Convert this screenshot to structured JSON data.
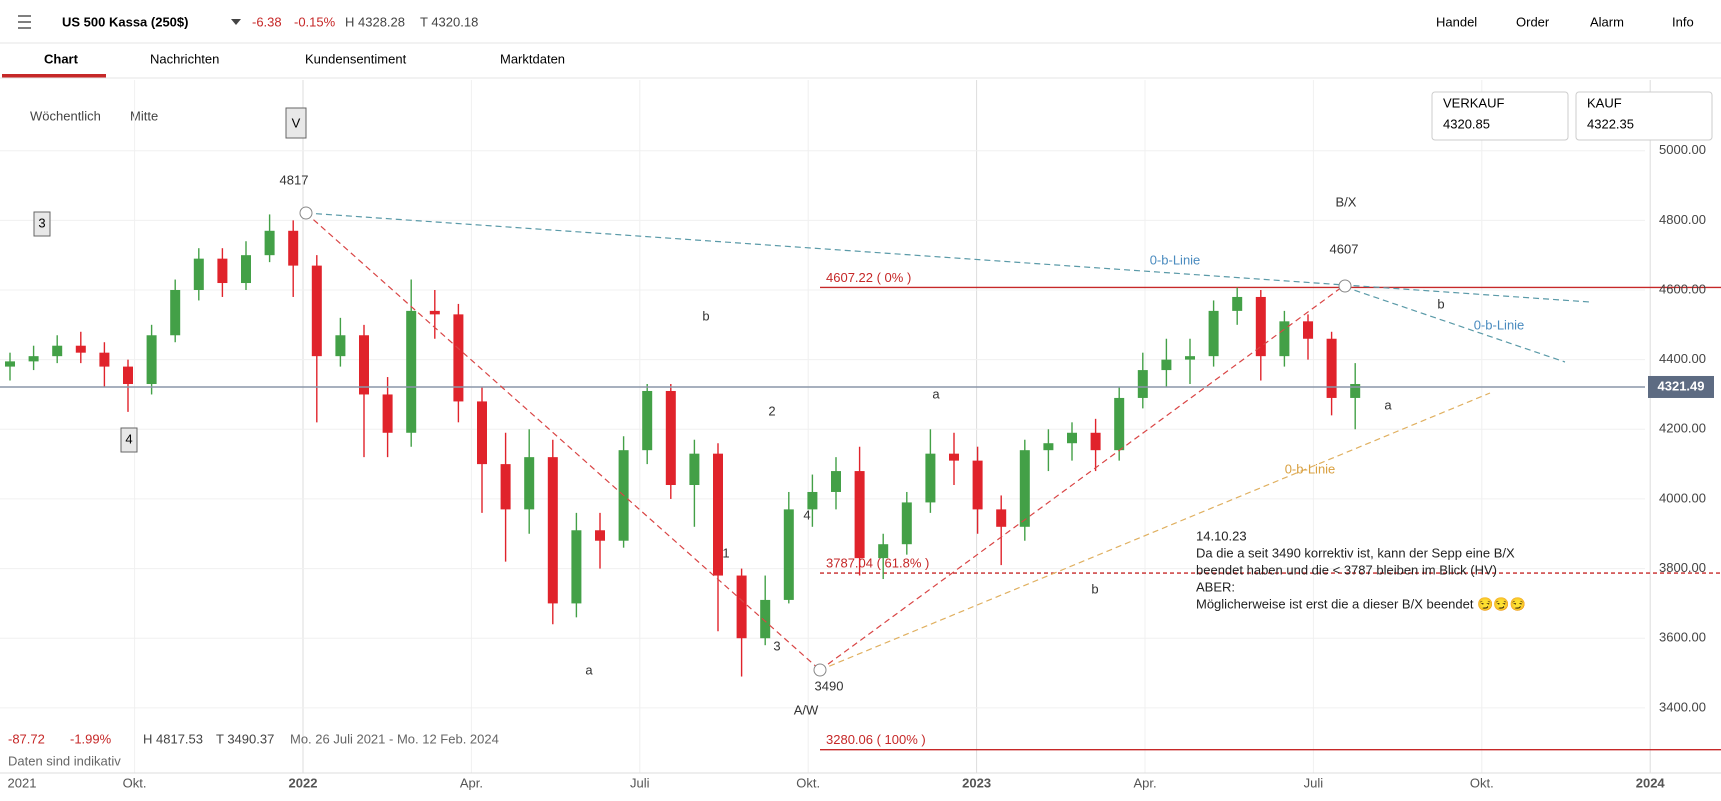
{
  "header": {
    "instrument": "US 500 Kassa (250$)",
    "change": "-6.38",
    "change_pct": "-0.15%",
    "high": "H 4328.28",
    "low": "T 4320.18",
    "nav": [
      "Handel",
      "Order",
      "Alarm",
      "Info"
    ]
  },
  "tabs": [
    "Chart",
    "Nachrichten",
    "Kundensentiment",
    "Marktdaten"
  ],
  "controls": {
    "interval": "Wöchentlich",
    "price_type": "Mitte"
  },
  "quote": {
    "sell_label": "VERKAUF",
    "sell": "4320.85",
    "buy_label": "KAUF",
    "buy": "4322.35"
  },
  "footer": {
    "change": "-87.72",
    "change_pct": "-1.99%",
    "high": "H 4817.53",
    "low": "T 3490.37",
    "range": "Mo. 26 Juli 2021 - Mo. 12 Feb. 2024",
    "note": "Daten sind indikativ"
  },
  "x_labels": [
    "2021",
    "Okt.",
    "2022",
    "Apr.",
    "Juli",
    "Okt.",
    "2023",
    "Apr.",
    "Juli",
    "Okt.",
    "2024"
  ],
  "annotations": [
    "V",
    "3",
    "4",
    "4817",
    "b",
    "2",
    "a",
    "1",
    "4",
    "3",
    "3490",
    "A/W",
    "a",
    "B/X",
    "4607",
    "0-b-Linie",
    "0-b-Linie",
    "b",
    "a",
    "0-b-Linie",
    "b"
  ],
  "note": [
    "14.10.23",
    "Da die a seit 3490 korrektiv ist, kann der Sepp eine B/X",
    "beendet haben und die < 3787 bleiben im Blick (HV)",
    "ABER:",
    "Möglicherweise ist erst die a dieser B/X beendet 😏😏😏"
  ],
  "chart_data": {
    "type": "candlestick",
    "up_color": "#43a047",
    "down_color": "#e0232b",
    "ylim": [
      3213,
      5203
    ],
    "yticks": [
      {
        "value": 3400,
        "label": "3400.00"
      },
      {
        "value": 3600,
        "label": "3600.00"
      },
      {
        "value": 3800,
        "label": "3800.00"
      },
      {
        "value": 4000,
        "label": "4000.00"
      },
      {
        "value": 4200,
        "label": "4200.00"
      },
      {
        "value": 4400,
        "label": "4400.00"
      },
      {
        "value": 4600,
        "label": "4600.00"
      },
      {
        "value": 4800,
        "label": "4800.00"
      },
      {
        "value": 5000,
        "label": "5000.00"
      }
    ],
    "current": {
      "value": 4321.49,
      "label": "4321.49"
    },
    "levels": [
      {
        "value": 4607.22,
        "label": "4607.22 ( 0% )"
      },
      {
        "value": 3787.04,
        "label": "3787.04 ( 61.8% )"
      },
      {
        "value": 3280.06,
        "label": "3280.06 ( 100% )"
      }
    ],
    "open": [
      4380,
      4395,
      4410,
      4440,
      4420,
      4380,
      4330,
      4470,
      4600,
      4690,
      4620,
      4700,
      4770,
      4670,
      4410,
      4470,
      4300,
      4190,
      4540,
      4530,
      4280,
      4100,
      3970,
      4120,
      3700,
      3910,
      3880,
      4140,
      4310,
      4040,
      4130,
      3780,
      3600,
      3710,
      3970,
      4020,
      4080,
      3830,
      3870,
      3990,
      4130,
      4110,
      3970,
      3920,
      4140,
      4160,
      4190,
      4140,
      4290,
      4370,
      4400,
      4410,
      4540,
      4580,
      4410,
      4510,
      4460,
      4290
    ],
    "high": [
      4420,
      4440,
      4470,
      4480,
      4450,
      4400,
      4500,
      4630,
      4720,
      4720,
      4740,
      4817,
      4800,
      4700,
      4520,
      4500,
      4350,
      4630,
      4600,
      4560,
      4320,
      4190,
      4200,
      4170,
      3960,
      3960,
      4180,
      4330,
      4330,
      4170,
      4160,
      3800,
      3780,
      4020,
      4070,
      4120,
      4150,
      3900,
      4020,
      4200,
      4190,
      4150,
      4010,
      4170,
      4200,
      4220,
      4230,
      4320,
      4420,
      4460,
      4460,
      4570,
      4607,
      4600,
      4540,
      4530,
      4480,
      4390
    ],
    "low": [
      4340,
      4370,
      4390,
      4390,
      4320,
      4250,
      4300,
      4450,
      4570,
      4580,
      4600,
      4680,
      4580,
      4220,
      4380,
      4120,
      4120,
      4150,
      4460,
      4220,
      3960,
      3820,
      3900,
      3640,
      3660,
      3800,
      3860,
      4100,
      4000,
      3920,
      3620,
      3490,
      3580,
      3700,
      3920,
      3970,
      3780,
      3770,
      3840,
      3960,
      4040,
      3900,
      3810,
      3880,
      4080,
      4110,
      4080,
      4110,
      4260,
      4320,
      4330,
      4380,
      4500,
      4340,
      4380,
      4400,
      4240,
      4200
    ],
    "close": [
      4395,
      4410,
      4440,
      4420,
      4380,
      4330,
      4470,
      4600,
      4690,
      4620,
      4700,
      4770,
      4670,
      4410,
      4470,
      4300,
      4190,
      4540,
      4530,
      4280,
      4100,
      3970,
      4120,
      3700,
      3910,
      3880,
      4140,
      4310,
      4040,
      4130,
      3780,
      3600,
      3710,
      3970,
      4020,
      4080,
      3830,
      3870,
      3990,
      4130,
      4110,
      3970,
      3920,
      4140,
      4160,
      4190,
      4140,
      4290,
      4370,
      4400,
      4410,
      4540,
      4580,
      4410,
      4510,
      4460,
      4290,
      4330
    ]
  }
}
